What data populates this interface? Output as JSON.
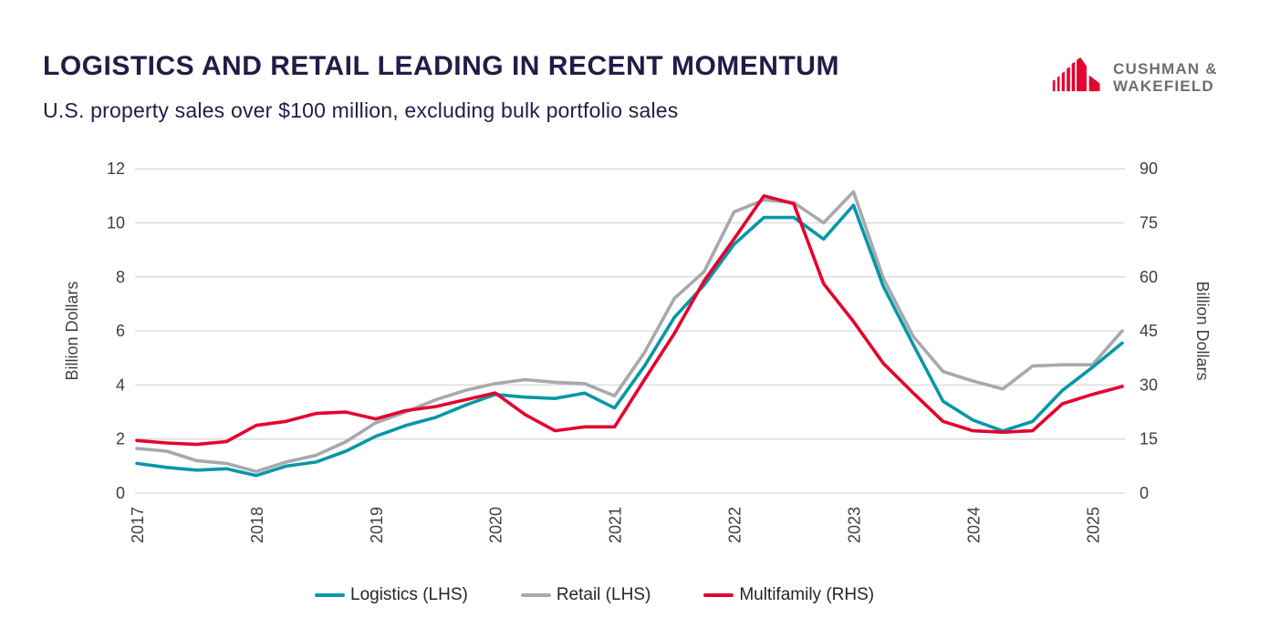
{
  "header": {
    "title": "LOGISTICS AND RETAIL LEADING IN RECENT MOMENTUM",
    "subtitle": "U.S. property sales over $100 million, excluding bulk portfolio sales"
  },
  "logo": {
    "line1": "CUSHMAN &",
    "line2": "WAKEFIELD",
    "icon_color": "#E4032E",
    "text_color": "#6D6E71"
  },
  "chart_data": {
    "type": "line",
    "x_tick_labels": [
      "2017",
      "2018",
      "2019",
      "2020",
      "2021",
      "2022",
      "2023",
      "2024",
      "2025"
    ],
    "points_per_year": 4,
    "left_axis": {
      "label": "Billion Dollars",
      "ticks": [
        0,
        2,
        4,
        6,
        8,
        10,
        12
      ],
      "range": [
        0,
        12
      ]
    },
    "right_axis": {
      "label": "Billion Dollars",
      "ticks": [
        0,
        15,
        30,
        45,
        60,
        75,
        90
      ],
      "range": [
        0,
        90
      ]
    },
    "grid": true,
    "legend_position": "bottom",
    "series": [
      {
        "name": "Retail (LHS)",
        "axis": "left",
        "color": "#A7A9AC",
        "values": [
          1.65,
          1.55,
          1.2,
          1.1,
          0.8,
          1.15,
          1.4,
          1.9,
          2.6,
          3.0,
          3.45,
          3.8,
          4.05,
          4.2,
          4.1,
          4.05,
          3.6,
          5.2,
          7.2,
          8.2,
          10.4,
          10.85,
          10.75,
          10.0,
          11.15,
          7.95,
          5.8,
          4.5,
          4.15,
          3.85,
          4.7,
          4.75,
          4.75,
          6.0
        ]
      },
      {
        "name": "Logistics (LHS)",
        "axis": "left",
        "color": "#0697A7",
        "values": [
          1.1,
          0.95,
          0.85,
          0.9,
          0.65,
          1.0,
          1.15,
          1.55,
          2.1,
          2.5,
          2.8,
          3.25,
          3.65,
          3.55,
          3.5,
          3.7,
          3.15,
          4.7,
          6.5,
          7.7,
          9.2,
          10.2,
          10.2,
          9.4,
          10.65,
          7.65,
          5.5,
          3.4,
          2.7,
          2.3,
          2.65,
          3.8,
          4.65,
          5.55
        ]
      },
      {
        "name": "Multifamily (RHS)",
        "axis": "right",
        "color": "#E4032E",
        "values": [
          14.6,
          13.9,
          13.5,
          14.3,
          18.8,
          19.9,
          22.1,
          22.5,
          20.6,
          22.9,
          24.0,
          25.9,
          27.8,
          21.8,
          17.3,
          18.4,
          18.4,
          31.5,
          44.3,
          58.9,
          70.5,
          82.5,
          80.3,
          58.1,
          47.6,
          36.0,
          27.8,
          19.9,
          17.3,
          16.9,
          17.3,
          24.8,
          27.4,
          29.6
        ]
      }
    ],
    "legend_order": [
      "Logistics (LHS)",
      "Retail (LHS)",
      "Multifamily (RHS)"
    ]
  },
  "colors": {
    "grid": "#D9D9D9",
    "axis_text": "#3F3F3F",
    "title": "#221C46"
  }
}
